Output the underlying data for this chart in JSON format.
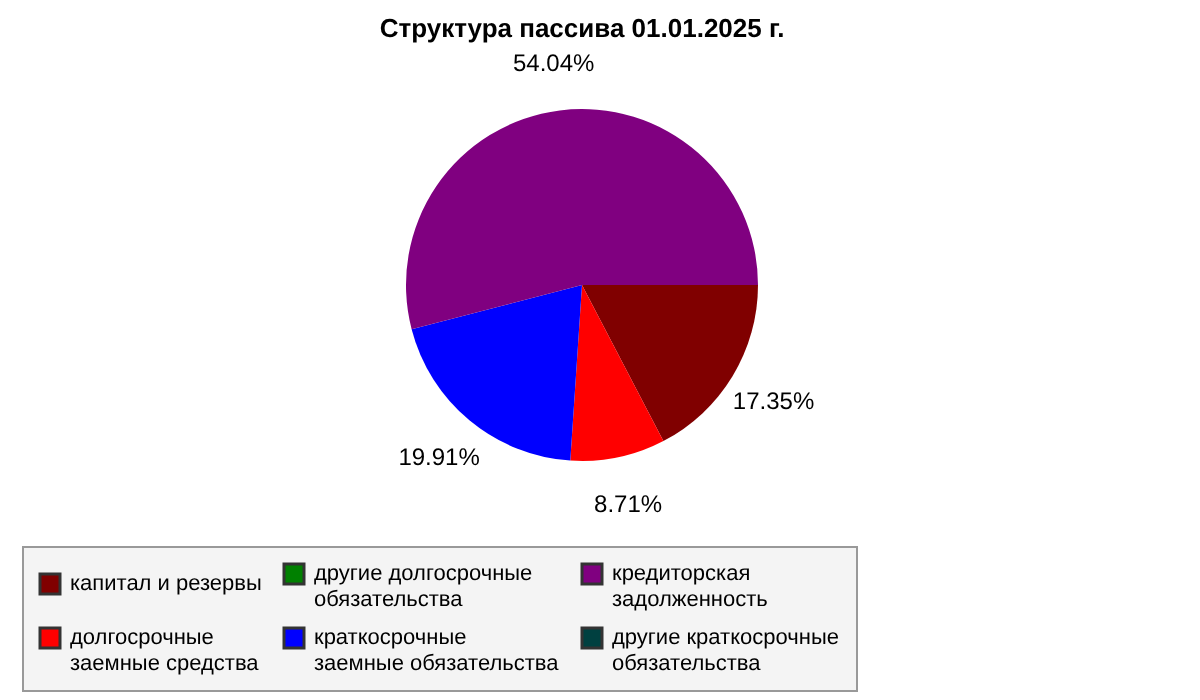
{
  "chart_data": {
    "type": "pie",
    "title": "Структура пассива 01.01.2025 г.",
    "categories": [
      "капитал и резервы",
      "долгосрочные заемные средства",
      "другие долгосрочные обязательства",
      "краткосрочные заемные обязательства",
      "кредиторская задолженность",
      "другие краткосрочные обязательства"
    ],
    "values": [
      17.35,
      8.71,
      0,
      19.91,
      54.04,
      0
    ],
    "colors": [
      "#800000",
      "#ff0000",
      "#008000",
      "#0000ff",
      "#800080",
      "#004040"
    ],
    "value_labels": [
      "17.35%",
      "8.71%",
      null,
      "19.91%",
      "54.04%",
      null
    ],
    "legend": "bottom"
  }
}
